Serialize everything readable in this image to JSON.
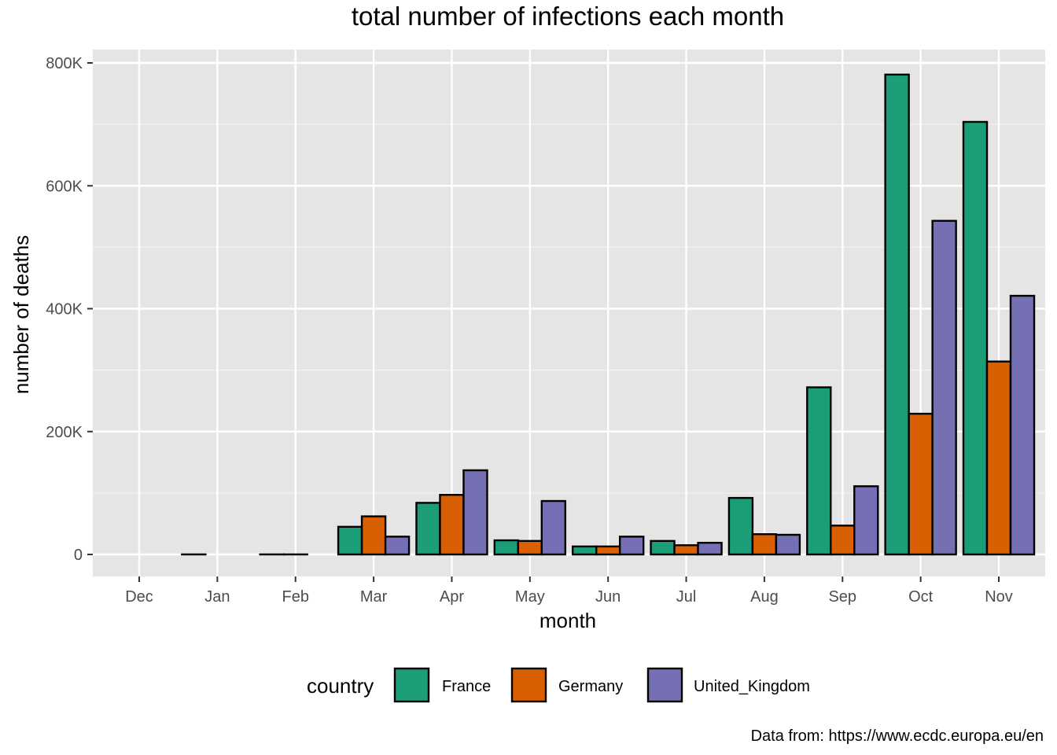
{
  "chart_data": {
    "type": "bar",
    "title": "total number of infections each month",
    "xlabel": "month",
    "ylabel": "number of deaths",
    "caption": "Data from: https://www.ecdc.europa.eu/en",
    "categories": [
      "Dec",
      "Jan",
      "Feb",
      "Mar",
      "Apr",
      "May",
      "Jun",
      "Jul",
      "Aug",
      "Sep",
      "Oct",
      "Nov"
    ],
    "ylim": [
      -37000,
      820000
    ],
    "yticks": [
      0,
      200000,
      400000,
      600000,
      800000
    ],
    "ytick_labels": [
      "0",
      "200K",
      "400K",
      "600K",
      "800K"
    ],
    "grid": true,
    "legend": {
      "title": "country",
      "position": "bottom"
    },
    "series": [
      {
        "name": "France",
        "color": "#1B9E77",
        "values": [
          0,
          100,
          100,
          45000,
          84000,
          23000,
          13000,
          22000,
          92000,
          272000,
          781000,
          704000
        ]
      },
      {
        "name": "Germany",
        "color": "#D95F02",
        "values": [
          0,
          0,
          100,
          62000,
          97000,
          22000,
          13000,
          15000,
          33000,
          47000,
          229000,
          314000
        ]
      },
      {
        "name": "United_Kingdom",
        "color": "#7570B3",
        "values": [
          0,
          0,
          0,
          29000,
          137000,
          87000,
          29000,
          19000,
          32000,
          111000,
          543000,
          421000
        ]
      }
    ]
  }
}
